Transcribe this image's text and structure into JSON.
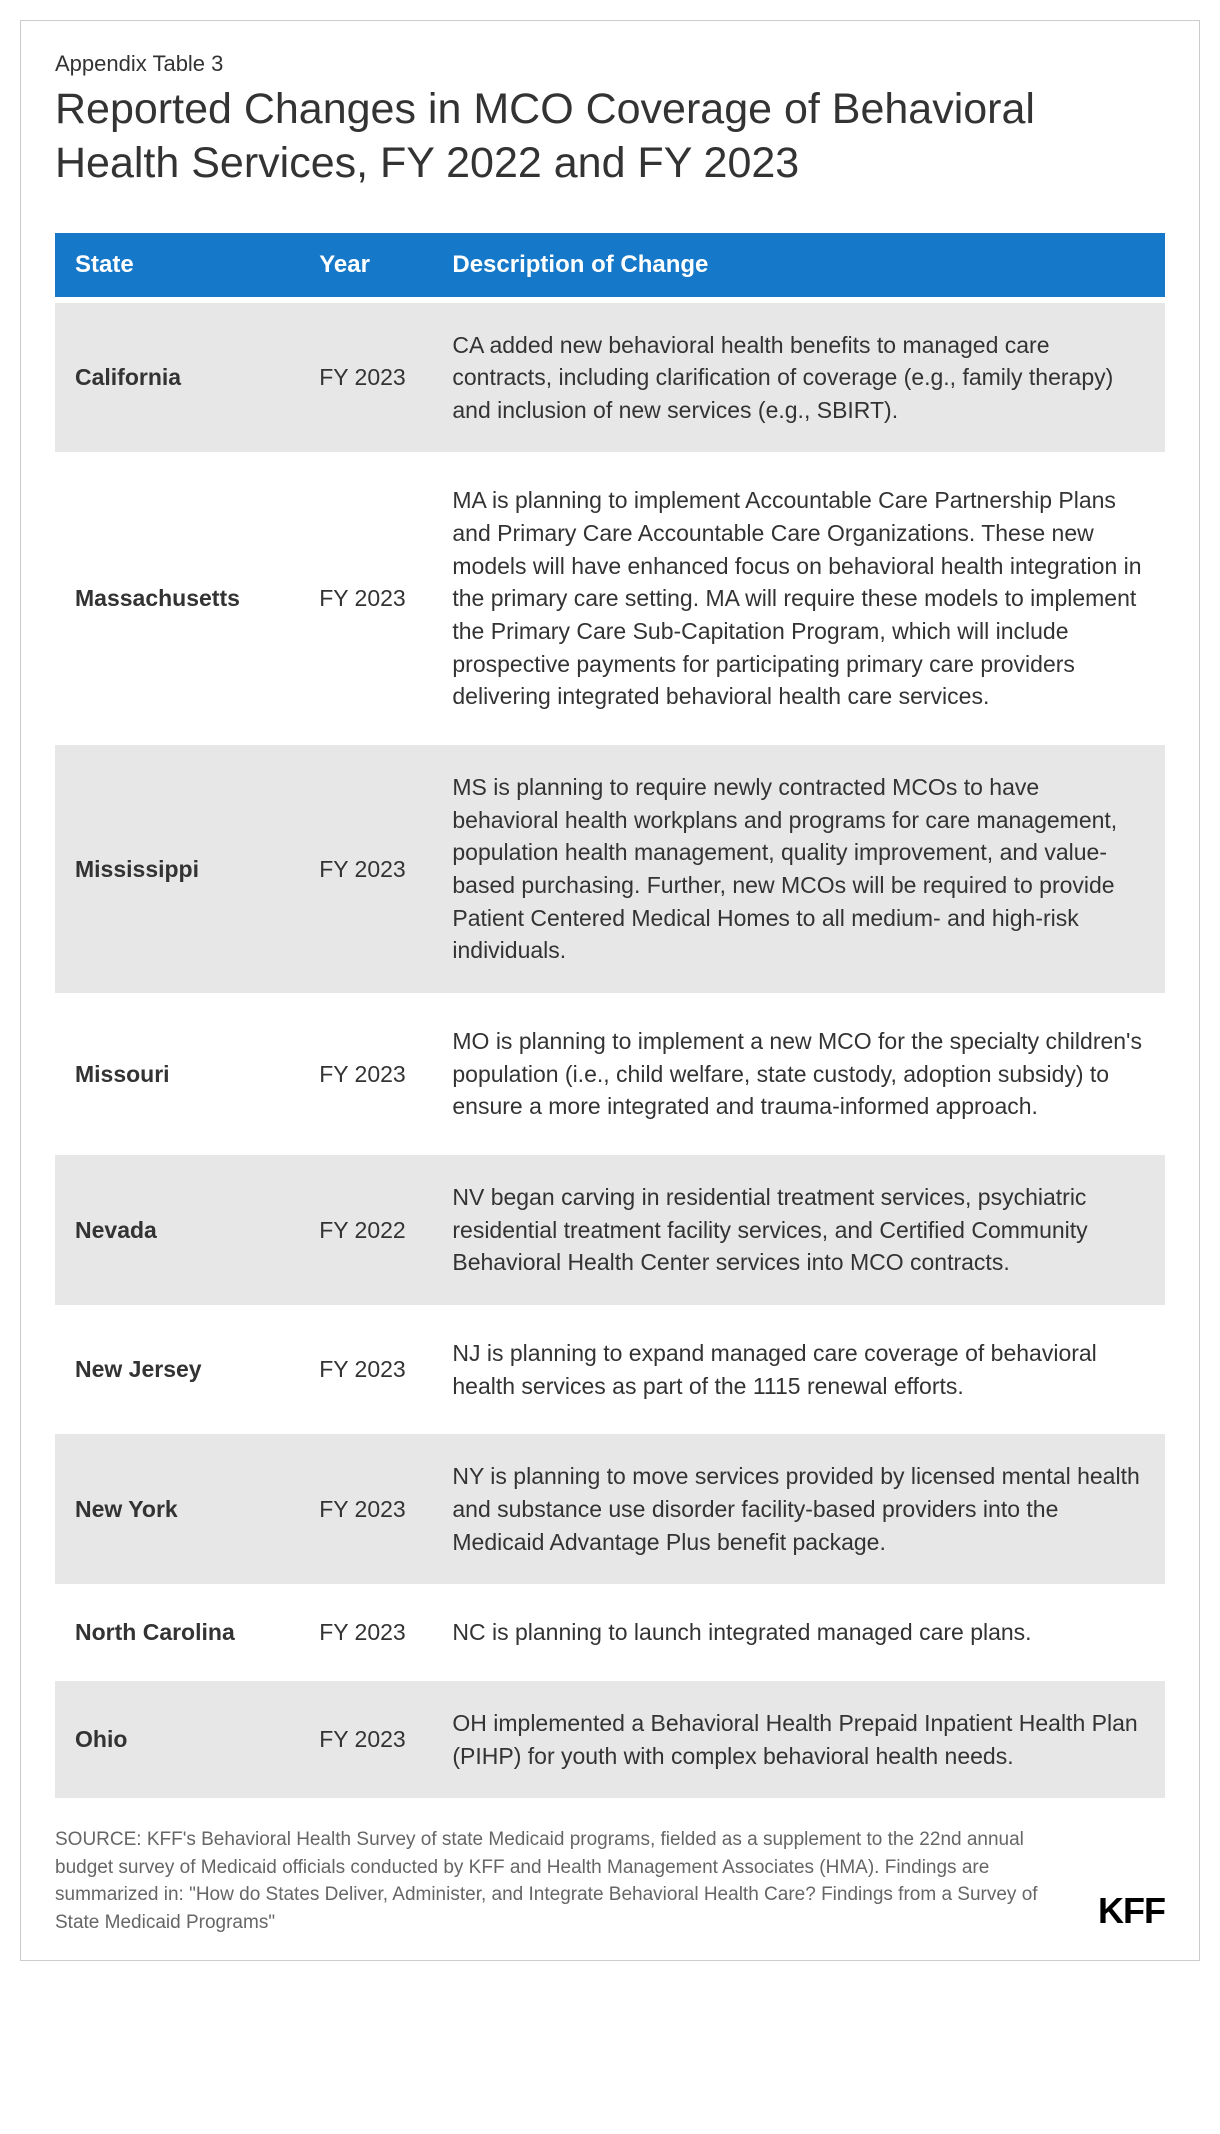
{
  "supertitle": "Appendix Table 3",
  "title": "Reported Changes in MCO Coverage of Behavioral Health Services, FY 2022 and FY 2023",
  "table": {
    "type": "table",
    "header_bg": "#1678c8",
    "header_fg": "#ffffff",
    "row_odd_bg": "#e7e7e7",
    "row_even_bg": "#ffffff",
    "text_color": "#333333",
    "columns": [
      {
        "key": "state",
        "label": "State",
        "width_pct": 22,
        "bold": true
      },
      {
        "key": "year",
        "label": "Year",
        "width_pct": 12,
        "bold": false
      },
      {
        "key": "desc",
        "label": "Description of Change",
        "width_pct": 66,
        "bold": false
      }
    ],
    "rows": [
      {
        "state": "California",
        "year": "FY 2023",
        "desc": "CA added new behavioral health benefits to managed care contracts, including clarification of coverage (e.g., family therapy) and inclusion of new services (e.g., SBIRT)."
      },
      {
        "state": "Massachusetts",
        "year": "FY 2023",
        "desc": "MA is planning to implement Accountable Care Partnership Plans and Primary Care Accountable Care Organizations. These new models will have enhanced focus on behavioral health integration in the primary care setting. MA will require these models to implement the Primary Care Sub-Capitation Program, which will include prospective payments for participating primary care providers delivering integrated behavioral health care services."
      },
      {
        "state": "Mississippi",
        "year": "FY 2023",
        "desc": "MS is planning to require newly contracted MCOs to have behavioral health workplans and programs for care management, population health management, quality improvement, and value-based purchasing. Further, new MCOs will be required to provide Patient Centered Medical Homes to all medium- and high-risk individuals."
      },
      {
        "state": "Missouri",
        "year": "FY 2023",
        "desc": "MO is planning to implement a new MCO for the specialty children's population (i.e., child welfare, state custody, adoption subsidy) to ensure a more integrated and trauma-informed approach."
      },
      {
        "state": "Nevada",
        "year": "FY 2022",
        "desc": "NV began carving in residential treatment services, psychiatric residential treatment facility services, and Certified Community Behavioral Health Center services into MCO contracts."
      },
      {
        "state": "New Jersey",
        "year": "FY 2023",
        "desc": "NJ is planning to expand managed care coverage of behavioral health services as part of the 1115 renewal efforts."
      },
      {
        "state": "New York",
        "year": "FY 2023",
        "desc": "NY is planning to move services provided by licensed mental health and substance use disorder facility-based providers into the Medicaid Advantage Plus benefit package."
      },
      {
        "state": "North Carolina",
        "year": "FY 2023",
        "desc": "NC is planning to launch integrated managed care plans."
      },
      {
        "state": "Ohio",
        "year": "FY 2023",
        "desc": "OH implemented a Behavioral Health Prepaid Inpatient Health Plan (PIHP) for youth with complex behavioral health needs."
      }
    ]
  },
  "source": "SOURCE: KFF's Behavioral Health Survey of state Medicaid programs, fielded as a supplement to the 22nd annual budget survey of Medicaid officials conducted by KFF and Health Management Associates (HMA). Findings are summarized in: \"How do States Deliver, Administer, and Integrate Behavioral Health Care? Findings from a Survey of State Medicaid Programs\"",
  "logo_text": "KFF",
  "colors": {
    "border": "#cccccc",
    "title": "#333333",
    "source_text": "#666666",
    "logo": "#000000",
    "background": "#ffffff"
  },
  "typography": {
    "supertitle_fontsize": 22,
    "title_fontsize": 43,
    "header_fontsize": 24,
    "body_fontsize": 23,
    "source_fontsize": 19,
    "logo_fontsize": 36
  }
}
